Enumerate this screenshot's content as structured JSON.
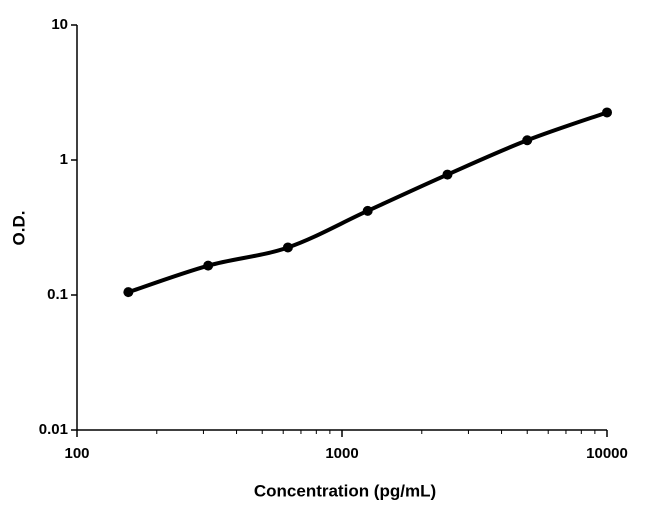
{
  "chart_data": {
    "type": "scatter",
    "xlabel": "Concentration (pg/mL)",
    "ylabel": "O.D.",
    "x": [
      156.25,
      312.5,
      625,
      1250,
      2500,
      5000,
      10000
    ],
    "series": [
      {
        "color": "#000000",
        "values": [
          0.105,
          0.165,
          0.225,
          0.42,
          0.78,
          1.4,
          2.25
        ]
      }
    ],
    "xscale": "log",
    "yscale": "log",
    "xlim": [
      100,
      10000
    ],
    "ylim": [
      0.01,
      10
    ],
    "xticks": [
      100,
      1000,
      10000
    ],
    "xminorticks": [
      200,
      300,
      400,
      500,
      600,
      700,
      800,
      900,
      2000,
      3000,
      4000,
      5000,
      6000,
      7000,
      8000,
      9000
    ],
    "yticks": [
      0.01,
      0.1,
      1,
      10
    ],
    "fit_line": true,
    "grid": false
  }
}
